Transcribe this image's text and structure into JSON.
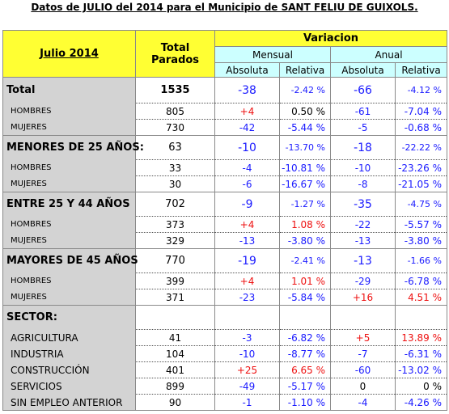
{
  "title": "Datos de JULIO del 2014 para el Municipio de SANT FELIU DE GUIXOLS.",
  "header": {
    "period": "Julio 2014",
    "total": "Total Parados",
    "variacion": "Variacion",
    "mensual": "Mensual",
    "anual": "Anual",
    "subheaders": [
      "Absoluta",
      "Relativa",
      "Absoluta",
      "Relativa"
    ]
  },
  "groups": [
    {
      "row": [
        "Total",
        "1535",
        "-38",
        "-2.42 %",
        "-66",
        "-4.12 %"
      ],
      "rows": [
        [
          "HOMBRES",
          "805",
          "+4",
          "0.50 %",
          "-61",
          "-7.04 %"
        ],
        [
          "MUJERES",
          "730",
          "-42",
          "-5.44 %",
          "-5",
          "-0.68 %"
        ]
      ]
    },
    {
      "row": [
        "MENORES DE 25 AÑOS:",
        "63",
        "-10",
        "-13.70 %",
        "-18",
        "-22.22 %"
      ],
      "rows": [
        [
          "HOMBRES",
          "33",
          "-4",
          "-10.81 %",
          "-10",
          "-23.26 %"
        ],
        [
          "MUJERES",
          "30",
          "-6",
          "-16.67 %",
          "-8",
          "-21.05 %"
        ]
      ]
    },
    {
      "row": [
        "ENTRE 25 Y 44 AÑOS",
        "702",
        "-9",
        "-1.27 %",
        "-35",
        "-4.75 %"
      ],
      "rows": [
        [
          "HOMBRES",
          "373",
          "+4",
          "1.08 %",
          "-22",
          "-5.57 %"
        ],
        [
          "MUJERES",
          "329",
          "-13",
          "-3.80 %",
          "-13",
          "-3.80 %"
        ]
      ]
    },
    {
      "row": [
        "MAYORES DE 45 AÑOS",
        "770",
        "-19",
        "-2.41 %",
        "-13",
        "-1.66 %"
      ],
      "rows": [
        [
          "HOMBRES",
          "399",
          "+4",
          "1.01 %",
          "-29",
          "-6.78 %"
        ],
        [
          "MUJERES",
          "371",
          "-23",
          "-5.84 %",
          "+16",
          "4.51 %"
        ]
      ]
    },
    {
      "row": [
        "SECTOR:"
      ],
      "rows": [
        [
          "AGRICULTURA",
          "41",
          "-3",
          "-6.82 %",
          "+5",
          "13.89 %"
        ],
        [
          "INDUSTRIA",
          "104",
          "-10",
          "-8.77 %",
          "-7",
          "-6.31 %"
        ],
        [
          "CONSTRUCCIÓN",
          "401",
          "+25",
          "6.65 %",
          "-60",
          "-13.02 %"
        ],
        [
          "SERVICIOS",
          "899",
          "-49",
          "-5.17 %",
          "0",
          "0 %"
        ],
        [
          "SIN EMPLEO ANTERIOR",
          "90",
          "-1",
          "-1.10 %",
          "-4",
          "-4.26 %"
        ]
      ]
    }
  ]
}
